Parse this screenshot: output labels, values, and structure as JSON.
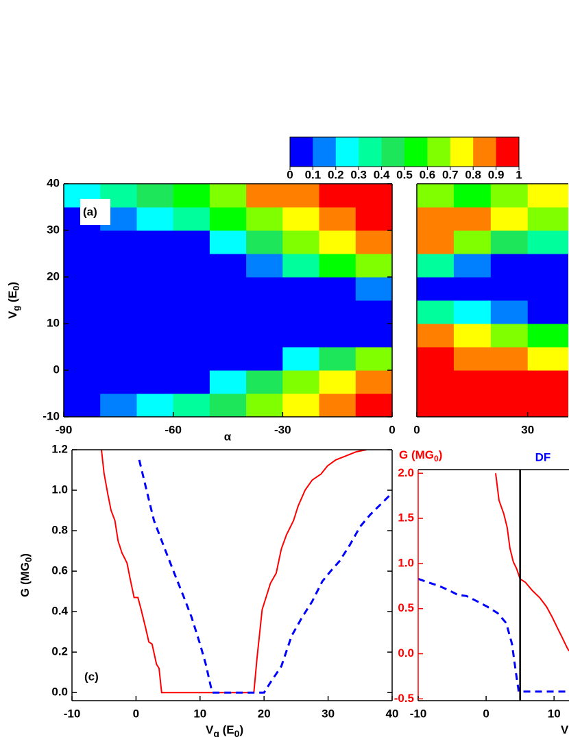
{
  "chart_data": [
    {
      "type": "heatmap",
      "panel": "(a)",
      "xlabel": "α",
      "ylabel": [
        {
          "t": "V"
        },
        {
          "t": "g",
          "sub": true
        },
        {
          "t": " (E"
        },
        {
          "t": "0",
          "sub": true
        },
        {
          "t": ")"
        }
      ],
      "xlim": [
        -90,
        0
      ],
      "ylim": [
        -10,
        40
      ],
      "xticks": [
        -90,
        -60,
        -30,
        0
      ],
      "yticks": [
        -10,
        0,
        10,
        20,
        30,
        40
      ],
      "xbins": [
        -90,
        -80,
        -70,
        -60,
        -50,
        -40,
        -30,
        -20,
        -10,
        0
      ],
      "ybins": [
        -10,
        -5,
        0,
        5,
        10,
        15,
        20,
        25,
        30,
        35,
        40
      ],
      "z": [
        [
          0.05,
          0.1,
          0.2,
          0.3,
          0.45,
          0.6,
          0.75,
          0.85,
          0.9
        ],
        [
          0,
          0,
          0,
          0.05,
          0.2,
          0.4,
          0.6,
          0.75,
          0.85
        ],
        [
          0,
          0,
          0,
          0,
          0,
          0.05,
          0.2,
          0.45,
          0.6
        ],
        [
          0,
          0,
          0,
          0,
          0,
          0,
          0,
          0,
          0
        ],
        [
          0,
          0,
          0,
          0,
          0,
          0,
          0,
          0,
          0
        ],
        [
          0,
          0,
          0,
          0,
          0,
          0,
          0,
          0.05,
          0.1
        ],
        [
          0,
          0,
          0,
          0,
          0,
          0.1,
          0.3,
          0.5,
          0.6
        ],
        [
          0,
          0,
          0,
          0.05,
          0.2,
          0.4,
          0.6,
          0.7,
          0.8
        ],
        [
          0.05,
          0.1,
          0.2,
          0.35,
          0.5,
          0.65,
          0.75,
          0.85,
          0.9
        ],
        [
          0.2,
          0.3,
          0.4,
          0.5,
          0.65,
          0.8,
          0.85,
          0.9,
          0.95
        ]
      ],
      "colorbar": {
        "zlim": [
          0,
          1
        ],
        "ticks": [
          0,
          0.1,
          0.2,
          0.3,
          0.4,
          0.5,
          0.6,
          0.7,
          0.8,
          0.9,
          1
        ],
        "colors": [
          "#0000ff",
          "#0080ff",
          "#00ffff",
          "#00ff9c",
          "#1ee65a",
          "#00ff00",
          "#80ff00",
          "#ffff00",
          "#ff8000",
          "#ff0000"
        ]
      }
    },
    {
      "type": "heatmap",
      "xlim": [
        0,
        41
      ],
      "ylim": [
        -10,
        40
      ],
      "xticks": [
        0,
        30
      ],
      "xbins": [
        0,
        10,
        20,
        30,
        41
      ],
      "ybins": [
        -10,
        -5,
        0,
        5,
        10,
        15,
        20,
        25,
        30,
        35,
        40
      ],
      "z": [
        [
          0.95,
          0.95,
          0.95,
          0.95
        ],
        [
          0.95,
          0.95,
          0.9,
          0.9
        ],
        [
          0.9,
          0.85,
          0.8,
          0.75
        ],
        [
          0.8,
          0.7,
          0.6,
          0.5
        ],
        [
          0.3,
          0.2,
          0.1,
          0.05
        ],
        [
          0,
          0,
          0,
          0
        ],
        [
          0.3,
          0.1,
          0,
          0
        ],
        [
          0.8,
          0.6,
          0.4,
          0.3
        ],
        [
          0.85,
          0.8,
          0.7,
          0.6
        ],
        [
          0.6,
          0.5,
          0.6,
          0.7
        ]
      ]
    },
    {
      "type": "line",
      "panel": "(c)",
      "xlabel": [
        {
          "t": "V"
        },
        {
          "t": "g",
          "sub": true
        },
        {
          "t": " (E"
        },
        {
          "t": "0",
          "sub": true
        },
        {
          "t": ")"
        }
      ],
      "ylabel": [
        {
          "t": "G (MG"
        },
        {
          "t": "0",
          "sub": true
        },
        {
          "t": ")"
        }
      ],
      "xlim": [
        -10,
        40
      ],
      "ylim": [
        -0.04,
        1.2
      ],
      "xticks": [
        -10,
        0,
        10,
        20,
        30,
        40
      ],
      "yticks": [
        {
          "value": 0,
          "label": "0.0"
        },
        {
          "value": 0.2,
          "label": "0.2"
        },
        {
          "value": 0.4,
          "label": "0.4"
        },
        {
          "value": 0.6,
          "label": "0.6"
        },
        {
          "value": 0.8,
          "label": "0.8"
        },
        {
          "value": 1.0,
          "label": "1.0"
        },
        {
          "value": 1.2,
          "label": "1.2"
        }
      ],
      "series": [
        {
          "color": "#ff0000",
          "x": [
            -5.4,
            -5.0,
            -4.4,
            -3.9,
            -3.3,
            -2.8,
            -2.2,
            -1.4,
            -0.9,
            -0.3,
            0.3,
            0.8,
            1.5,
            2.0,
            2.5,
            3.2,
            3.6,
            4.0,
            11.9,
            18.4,
            18.9,
            19.7,
            20.3,
            21.0,
            21.9,
            22.7,
            23.5,
            24.6,
            25.3,
            26.4,
            27.5,
            28.9,
            29.9,
            31.2,
            32.8,
            34.4,
            36.0
          ],
          "values": [
            1.2,
            1.085,
            0.98,
            0.9,
            0.85,
            0.75,
            0.69,
            0.64,
            0.56,
            0.47,
            0.47,
            0.41,
            0.32,
            0.25,
            0.24,
            0.14,
            0.12,
            0,
            0,
            0,
            0.17,
            0.41,
            0.47,
            0.54,
            0.59,
            0.71,
            0.78,
            0.85,
            0.92,
            1.0,
            1.05,
            1.08,
            1.12,
            1.15,
            1.17,
            1.19,
            1.2
          ]
        },
        {
          "color": "#0000ff",
          "dashed": true,
          "x": [
            0.5,
            1.8,
            2.8,
            4.5,
            6.1,
            7.5,
            8.7,
            10.0,
            10.9,
            11.9,
            20.0,
            21.0,
            22.7,
            24.3,
            25.9,
            27.5,
            29.1,
            30.4,
            31.8,
            33.4,
            35.0,
            36.6,
            38.2,
            39.8
          ],
          "values": [
            1.15,
            0.98,
            0.85,
            0.71,
            0.58,
            0.47,
            0.37,
            0.24,
            0.14,
            0,
            0,
            0.05,
            0.13,
            0.28,
            0.37,
            0.45,
            0.55,
            0.6,
            0.65,
            0.73,
            0.82,
            0.88,
            0.93,
            0.98
          ]
        }
      ]
    },
    {
      "type": "line",
      "title": "DF",
      "title_color": "#0000ff",
      "axis_color": "#ff0000",
      "xlabel": [
        {
          "t": "V"
        }
      ],
      "ylabel": [
        {
          "t": "G (MG"
        },
        {
          "t": "0",
          "sub": true
        },
        {
          "t": ")"
        }
      ],
      "xlim": [
        -10,
        12.2
      ],
      "ylim": [
        -0.52,
        2.04
      ],
      "xticks": [
        -10,
        0,
        10
      ],
      "yticks": [
        {
          "value": -0.5,
          "label": "-0.5"
        },
        {
          "value": 0,
          "label": "0.0"
        },
        {
          "value": 0.5,
          "label": "0.5"
        },
        {
          "value": 1.0,
          "label": "1.0"
        },
        {
          "value": 1.5,
          "label": "1.5"
        },
        {
          "value": 2.0,
          "label": "2.0"
        }
      ],
      "vline": 5,
      "series": [
        {
          "color": "#ff0000",
          "x": [
            1.4,
            1.9,
            2.6,
            3.1,
            3.5,
            4.0,
            4.5,
            5.0,
            5.8,
            6.8,
            7.9,
            8.9,
            9.7,
            10.4,
            11.2,
            11.9,
            12.2
          ],
          "values": [
            2.0,
            1.7,
            1.55,
            1.4,
            1.17,
            1.02,
            0.94,
            0.83,
            0.79,
            0.7,
            0.62,
            0.52,
            0.41,
            0.3,
            0.18,
            0.07,
            0.03
          ]
        },
        {
          "color": "#0000ff",
          "dashed": true,
          "x": [
            -10,
            -8.5,
            -6.9,
            -5.4,
            -4.1,
            -2.9,
            -1.3,
            0.2,
            1.7,
            2.96,
            3.8,
            4.5,
            4.8,
            5.3,
            12.2
          ],
          "values": [
            0.83,
            0.79,
            0.75,
            0.7,
            0.65,
            0.64,
            0.58,
            0.52,
            0.45,
            0.34,
            0.11,
            -0.27,
            -0.42,
            -0.42,
            -0.42
          ]
        }
      ]
    }
  ]
}
